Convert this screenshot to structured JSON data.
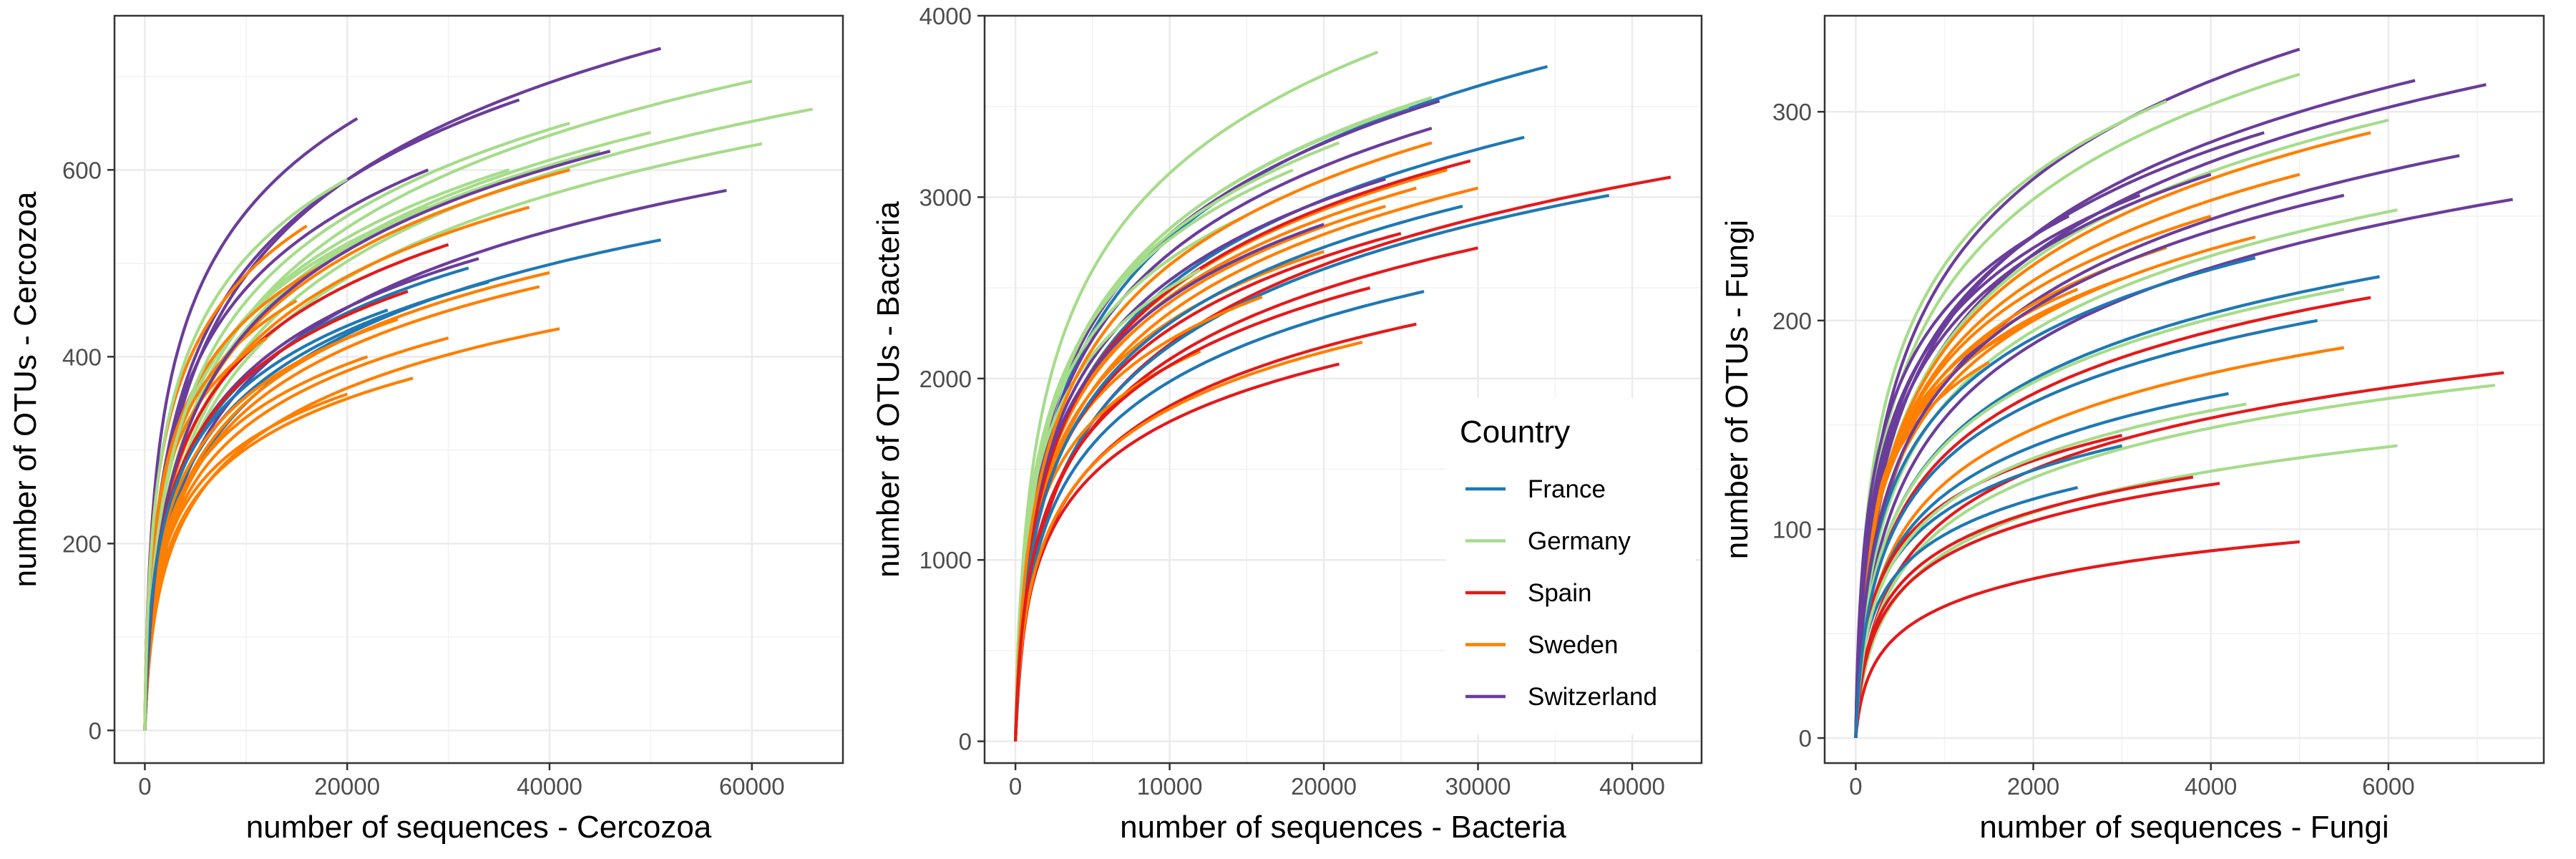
{
  "colors": {
    "France": "#1f78b4",
    "Germany": "#a6dc8a",
    "Spain": "#e31a1c",
    "Sweden": "#ff7f00",
    "Switzerland": "#6a3d9a"
  },
  "legend": {
    "title": "Country",
    "entries": [
      "France",
      "Germany",
      "Spain",
      "Sweden",
      "Switzerland"
    ]
  },
  "chart_data": [
    {
      "id": "cercozoa",
      "type": "line",
      "xlabel": "number of sequences - Cercozoa",
      "ylabel": "number of OTUs - Cercozoa",
      "xlim": [
        -3000,
        69000
      ],
      "ylim": [
        -35,
        765
      ],
      "xticks": [
        0,
        20000,
        40000,
        60000
      ],
      "yticks": [
        0,
        200,
        400,
        600
      ],
      "grid": true,
      "series": [
        {
          "group": "Switzerland",
          "x_end": 51000,
          "y_end": 730
        },
        {
          "group": "Germany",
          "x_end": 66000,
          "y_end": 665
        },
        {
          "group": "Germany",
          "x_end": 60000,
          "y_end": 695
        },
        {
          "group": "Germany",
          "x_end": 61000,
          "y_end": 628
        },
        {
          "group": "Switzerland",
          "x_end": 57500,
          "y_end": 578
        },
        {
          "group": "France",
          "x_end": 51000,
          "y_end": 525
        },
        {
          "group": "Sweden",
          "x_end": 41000,
          "y_end": 430
        },
        {
          "group": "Sweden",
          "x_end": 26500,
          "y_end": 377
        },
        {
          "group": "Sweden",
          "x_end": 30000,
          "y_end": 420
        },
        {
          "group": "Switzerland",
          "x_end": 21000,
          "y_end": 655
        },
        {
          "group": "Switzerland",
          "x_end": 37000,
          "y_end": 675
        },
        {
          "group": "Germany",
          "x_end": 50000,
          "y_end": 640
        },
        {
          "group": "Germany",
          "x_end": 45000,
          "y_end": 620
        },
        {
          "group": "Sweden",
          "x_end": 42000,
          "y_end": 600
        },
        {
          "group": "Sweden",
          "x_end": 38000,
          "y_end": 560
        },
        {
          "group": "Sweden",
          "x_end": 40000,
          "y_end": 490
        },
        {
          "group": "Sweden",
          "x_end": 39000,
          "y_end": 475
        },
        {
          "group": "France",
          "x_end": 34000,
          "y_end": 480
        },
        {
          "group": "France",
          "x_end": 32000,
          "y_end": 495
        },
        {
          "group": "Spain",
          "x_end": 30000,
          "y_end": 520
        },
        {
          "group": "Switzerland",
          "x_end": 33000,
          "y_end": 505
        },
        {
          "group": "Sweden",
          "x_end": 20000,
          "y_end": 360
        },
        {
          "group": "Sweden",
          "x_end": 22000,
          "y_end": 400
        },
        {
          "group": "Sweden",
          "x_end": 25000,
          "y_end": 440
        },
        {
          "group": "Germany",
          "x_end": 28000,
          "y_end": 560
        },
        {
          "group": "Germany",
          "x_end": 36000,
          "y_end": 600
        },
        {
          "group": "Switzerland",
          "x_end": 28000,
          "y_end": 600
        },
        {
          "group": "Sweden",
          "x_end": 18000,
          "y_end": 500
        },
        {
          "group": "Sweden",
          "x_end": 15000,
          "y_end": 460
        },
        {
          "group": "Sweden",
          "x_end": 12000,
          "y_end": 420
        },
        {
          "group": "Germany",
          "x_end": 42000,
          "y_end": 650
        },
        {
          "group": "Switzerland",
          "x_end": 46000,
          "y_end": 620
        },
        {
          "group": "Spain",
          "x_end": 26000,
          "y_end": 470
        },
        {
          "group": "France",
          "x_end": 24000,
          "y_end": 450
        },
        {
          "group": "Sweden",
          "x_end": 16000,
          "y_end": 540
        },
        {
          "group": "Germany",
          "x_end": 20000,
          "y_end": 590
        }
      ]
    },
    {
      "id": "bacteria",
      "type": "line",
      "xlabel": "number of sequences - Bacteria",
      "ylabel": "number of OTUs - Bacteria",
      "xlim": [
        -2000,
        44500
      ],
      "ylim": [
        -120,
        4000
      ],
      "xticks": [
        0,
        10000,
        20000,
        30000,
        40000
      ],
      "yticks": [
        0,
        1000,
        2000,
        3000,
        4000
      ],
      "grid": true,
      "series": [
        {
          "group": "Germany",
          "x_end": 23500,
          "y_end": 3800
        },
        {
          "group": "France",
          "x_end": 34500,
          "y_end": 3720
        },
        {
          "group": "France",
          "x_end": 33000,
          "y_end": 3330
        },
        {
          "group": "Spain",
          "x_end": 42500,
          "y_end": 3110
        },
        {
          "group": "France",
          "x_end": 38500,
          "y_end": 3010
        },
        {
          "group": "Spain",
          "x_end": 30000,
          "y_end": 2720
        },
        {
          "group": "France",
          "x_end": 26500,
          "y_end": 2480
        },
        {
          "group": "Spain",
          "x_end": 26000,
          "y_end": 2300
        },
        {
          "group": "Spain",
          "x_end": 21000,
          "y_end": 2080
        },
        {
          "group": "Sweden",
          "x_end": 22500,
          "y_end": 2200
        },
        {
          "group": "Switzerland",
          "x_end": 27500,
          "y_end": 3530
        },
        {
          "group": "Switzerland",
          "x_end": 27000,
          "y_end": 3380
        },
        {
          "group": "Germany",
          "x_end": 27000,
          "y_end": 3550
        },
        {
          "group": "Germany",
          "x_end": 25500,
          "y_end": 3500
        },
        {
          "group": "Germany",
          "x_end": 21000,
          "y_end": 3300
        },
        {
          "group": "Germany",
          "x_end": 18000,
          "y_end": 3150
        },
        {
          "group": "Germany",
          "x_end": 15000,
          "y_end": 2900
        },
        {
          "group": "Sweden",
          "x_end": 28000,
          "y_end": 3150
        },
        {
          "group": "Sweden",
          "x_end": 26000,
          "y_end": 3050
        },
        {
          "group": "Sweden",
          "x_end": 24000,
          "y_end": 2950
        },
        {
          "group": "Sweden",
          "x_end": 30000,
          "y_end": 3050
        },
        {
          "group": "Sweden",
          "x_end": 20000,
          "y_end": 2700
        },
        {
          "group": "Sweden",
          "x_end": 16000,
          "y_end": 2450
        },
        {
          "group": "Sweden",
          "x_end": 12000,
          "y_end": 2150
        },
        {
          "group": "Spain",
          "x_end": 29500,
          "y_end": 3200
        },
        {
          "group": "Spain",
          "x_end": 25000,
          "y_end": 2800
        },
        {
          "group": "France",
          "x_end": 29000,
          "y_end": 2950
        },
        {
          "group": "Switzerland",
          "x_end": 24000,
          "y_end": 3100
        },
        {
          "group": "Switzerland",
          "x_end": 20000,
          "y_end": 2850
        },
        {
          "group": "Germany",
          "x_end": 12000,
          "y_end": 2600
        },
        {
          "group": "Sweden",
          "x_end": 27000,
          "y_end": 3300
        },
        {
          "group": "Spain",
          "x_end": 23000,
          "y_end": 2500
        }
      ]
    },
    {
      "id": "fungi",
      "type": "line",
      "xlabel": "number of sequences - Fungi",
      "ylabel": "number of OTUs - Fungi",
      "xlim": [
        -350,
        7750
      ],
      "ylim": [
        -12,
        346
      ],
      "xticks": [
        0,
        2000,
        4000,
        6000
      ],
      "yticks": [
        0,
        100,
        200,
        300
      ],
      "grid": true,
      "series": [
        {
          "group": "Switzerland",
          "x_end": 5000,
          "y_end": 330
        },
        {
          "group": "Switzerland",
          "x_end": 7100,
          "y_end": 313
        },
        {
          "group": "Switzerland",
          "x_end": 7400,
          "y_end": 258
        },
        {
          "group": "Switzerland",
          "x_end": 6800,
          "y_end": 279
        },
        {
          "group": "Switzerland",
          "x_end": 6300,
          "y_end": 315
        },
        {
          "group": "Spain",
          "x_end": 7300,
          "y_end": 175
        },
        {
          "group": "Germany",
          "x_end": 7200,
          "y_end": 169
        },
        {
          "group": "Germany",
          "x_end": 6100,
          "y_end": 140
        },
        {
          "group": "Spain",
          "x_end": 5000,
          "y_end": 94
        },
        {
          "group": "Spain",
          "x_end": 4100,
          "y_end": 122
        },
        {
          "group": "Spain",
          "x_end": 5800,
          "y_end": 211
        },
        {
          "group": "France",
          "x_end": 5900,
          "y_end": 221
        },
        {
          "group": "Germany",
          "x_end": 3500,
          "y_end": 305
        },
        {
          "group": "Germany",
          "x_end": 5000,
          "y_end": 318
        },
        {
          "group": "Germany",
          "x_end": 6000,
          "y_end": 296
        },
        {
          "group": "Germany",
          "x_end": 6100,
          "y_end": 253
        },
        {
          "group": "Sweden",
          "x_end": 5800,
          "y_end": 290
        },
        {
          "group": "Sweden",
          "x_end": 5000,
          "y_end": 270
        },
        {
          "group": "Sweden",
          "x_end": 4500,
          "y_end": 240
        },
        {
          "group": "Sweden",
          "x_end": 4000,
          "y_end": 250
        },
        {
          "group": "Sweden",
          "x_end": 3500,
          "y_end": 235
        },
        {
          "group": "Sweden",
          "x_end": 3000,
          "y_end": 220
        },
        {
          "group": "Sweden",
          "x_end": 2500,
          "y_end": 215
        },
        {
          "group": "Sweden",
          "x_end": 2000,
          "y_end": 200
        },
        {
          "group": "Sweden",
          "x_end": 1500,
          "y_end": 180
        },
        {
          "group": "Sweden",
          "x_end": 5500,
          "y_end": 187
        },
        {
          "group": "France",
          "x_end": 4500,
          "y_end": 230
        },
        {
          "group": "France",
          "x_end": 4200,
          "y_end": 165
        },
        {
          "group": "France",
          "x_end": 3000,
          "y_end": 140
        },
        {
          "group": "France",
          "x_end": 2500,
          "y_end": 120
        },
        {
          "group": "Spain",
          "x_end": 3800,
          "y_end": 125
        },
        {
          "group": "Spain",
          "x_end": 3000,
          "y_end": 145
        },
        {
          "group": "Germany",
          "x_end": 4400,
          "y_end": 160
        },
        {
          "group": "Germany",
          "x_end": 5500,
          "y_end": 215
        },
        {
          "group": "Switzerland",
          "x_end": 5500,
          "y_end": 260
        },
        {
          "group": "Switzerland",
          "x_end": 4600,
          "y_end": 290
        },
        {
          "group": "Switzerland",
          "x_end": 4000,
          "y_end": 270
        },
        {
          "group": "Switzerland",
          "x_end": 3200,
          "y_end": 260
        },
        {
          "group": "Switzerland",
          "x_end": 2400,
          "y_end": 250
        },
        {
          "group": "France",
          "x_end": 5200,
          "y_end": 200
        }
      ]
    }
  ]
}
